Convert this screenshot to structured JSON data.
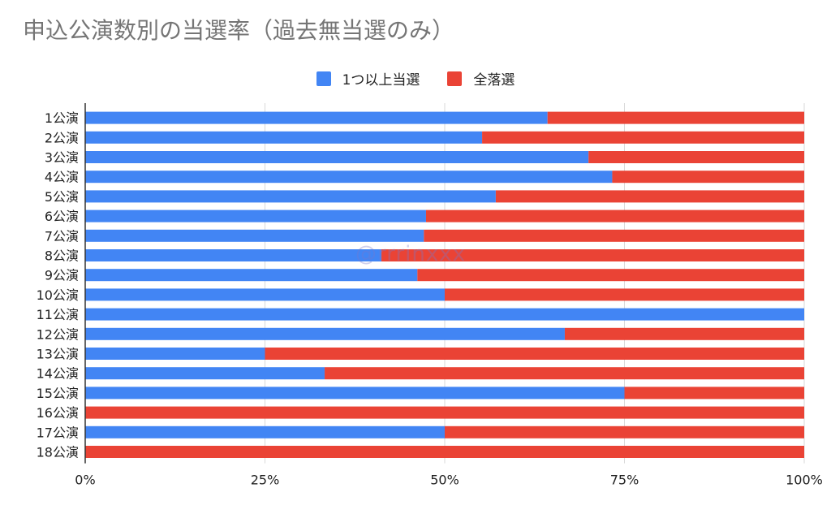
{
  "chart_data": {
    "type": "bar",
    "orientation": "horizontal",
    "stacked": "percent",
    "title": "申込公演数別の当選率（過去無当選のみ）",
    "categories": [
      "1公演",
      "2公演",
      "3公演",
      "4公演",
      "5公演",
      "6公演",
      "7公演",
      "8公演",
      "9公演",
      "10公演",
      "11公演",
      "12公演",
      "13公演",
      "14公演",
      "15公演",
      "16公演",
      "17公演",
      "18公演"
    ],
    "series": [
      {
        "name": "1つ以上当選",
        "color": "#4285f4",
        "values": [
          64.3,
          55.2,
          70.0,
          73.3,
          57.1,
          47.4,
          47.1,
          41.2,
          46.2,
          50.0,
          100,
          66.7,
          25.0,
          33.3,
          75.0,
          0,
          50.0,
          0
        ]
      },
      {
        "name": "全落選",
        "color": "#ea4335",
        "values": [
          35.7,
          44.8,
          30.0,
          26.7,
          42.9,
          52.6,
          52.9,
          58.8,
          53.8,
          50.0,
          0,
          33.3,
          75.0,
          66.7,
          25.0,
          100,
          50.0,
          100
        ]
      }
    ],
    "xticks": [
      "0%",
      "25%",
      "50%",
      "75%",
      "100%"
    ],
    "xlim": [
      0,
      100
    ],
    "legend_position": "top"
  },
  "watermark": "@rrrinxxx"
}
